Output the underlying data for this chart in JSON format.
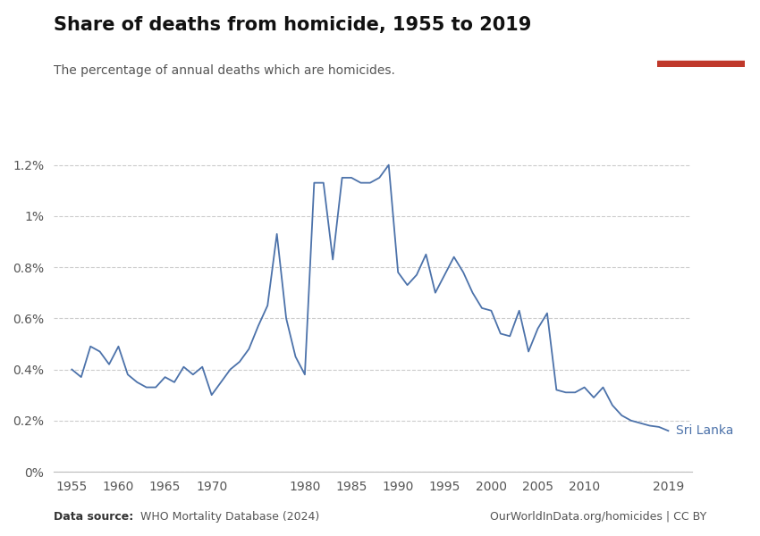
{
  "title": "Share of deaths from homicide, 1955 to 2019",
  "subtitle": "The percentage of annual deaths which are homicides.",
  "line_color": "#4C72AA",
  "label": "Sri Lanka",
  "data_source": "Data source: WHO Mortality Database (2024)",
  "owid_url": "OurWorldInData.org/homicides | CC BY",
  "years": [
    1955,
    1956,
    1957,
    1958,
    1959,
    1960,
    1961,
    1962,
    1963,
    1964,
    1965,
    1966,
    1967,
    1968,
    1969,
    1970,
    1971,
    1972,
    1973,
    1974,
    1975,
    1976,
    1977,
    1978,
    1979,
    1980,
    1981,
    1982,
    1983,
    1984,
    1985,
    1986,
    1987,
    1988,
    1989,
    1990,
    1991,
    1992,
    1993,
    1994,
    1995,
    1996,
    1997,
    1998,
    1999,
    2000,
    2001,
    2002,
    2003,
    2004,
    2005,
    2006,
    2007,
    2008,
    2009,
    2010,
    2011,
    2012,
    2013,
    2014,
    2015,
    2016,
    2017,
    2018,
    2019
  ],
  "values": [
    0.4,
    0.37,
    0.49,
    0.47,
    0.42,
    0.49,
    0.38,
    0.35,
    0.33,
    0.33,
    0.37,
    0.35,
    0.41,
    0.38,
    0.41,
    0.3,
    0.35,
    0.4,
    0.43,
    0.48,
    0.57,
    0.65,
    0.93,
    0.6,
    0.45,
    0.38,
    1.13,
    1.13,
    0.83,
    1.15,
    1.15,
    1.13,
    1.13,
    1.15,
    1.2,
    0.78,
    0.73,
    0.77,
    0.85,
    0.7,
    0.77,
    0.84,
    0.78,
    0.7,
    0.64,
    0.63,
    0.54,
    0.53,
    0.63,
    0.47,
    0.56,
    0.62,
    0.32,
    0.31,
    0.31,
    0.33,
    0.29,
    0.33,
    0.26,
    0.22,
    0.2,
    0.19,
    0.18,
    0.175,
    0.16
  ],
  "ylim_max": 0.013,
  "background_color": "#ffffff",
  "grid_color": "#cccccc",
  "owid_box_color": "#1a3a5c",
  "owid_text_color": "#ffffff",
  "owid_bar_color": "#c0392b",
  "xticks": [
    1955,
    1960,
    1965,
    1970,
    1980,
    1985,
    1990,
    1995,
    2000,
    2005,
    2010,
    2019
  ]
}
